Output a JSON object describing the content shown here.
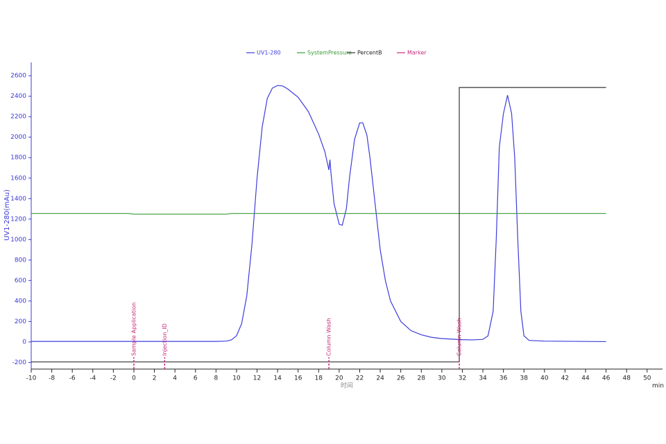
{
  "chart_data": {
    "type": "line",
    "x_label": "时间",
    "x_unit": "min",
    "y_label": "UV1-280(mAu)",
    "xlim": [
      -10,
      51.5
    ],
    "ylim": [
      -265,
      2730
    ],
    "xticks": [
      -10,
      -8,
      -6,
      -4,
      -2,
      0,
      2,
      4,
      6,
      8,
      10,
      12,
      14,
      16,
      18,
      20,
      22,
      24,
      26,
      28,
      30,
      32,
      34,
      36,
      38,
      40,
      42,
      44,
      46,
      48,
      50
    ],
    "yticks": [
      -200,
      0,
      200,
      400,
      600,
      800,
      1000,
      1200,
      1400,
      1600,
      1800,
      2000,
      2200,
      2400,
      2600
    ],
    "series": [
      {
        "name": "UV1-280",
        "color": "#3c3cdc",
        "x": [
          -10,
          0,
          8,
          9,
          9.5,
          10,
          10.5,
          11,
          11.5,
          12,
          12.5,
          13,
          13.5,
          14,
          14.5,
          15,
          16,
          17,
          18,
          18.6,
          19,
          19.1,
          19.2,
          19.5,
          20,
          20.3,
          20.7,
          21,
          21.5,
          22,
          22.3,
          22.7,
          23,
          23.5,
          24,
          24.5,
          25,
          26,
          27,
          28,
          29,
          30,
          31,
          32,
          33,
          34,
          34.5,
          35,
          35.3,
          35.6,
          36,
          36.4,
          36.8,
          37.1,
          37.4,
          37.7,
          38,
          38.5,
          40,
          46
        ],
        "values": [
          5,
          5,
          5,
          8,
          20,
          60,
          180,
          450,
          950,
          1600,
          2100,
          2380,
          2480,
          2505,
          2500,
          2470,
          2390,
          2250,
          2030,
          1860,
          1680,
          1780,
          1650,
          1350,
          1150,
          1140,
          1300,
          1600,
          1980,
          2140,
          2140,
          2020,
          1800,
          1350,
          900,
          600,
          400,
          200,
          110,
          70,
          45,
          33,
          27,
          22,
          20,
          25,
          60,
          300,
          1000,
          1900,
          2230,
          2410,
          2230,
          1800,
          1000,
          300,
          60,
          15,
          8,
          3
        ]
      },
      {
        "name": "SystemPressure",
        "color": "#3a9a3a",
        "x": [
          -10,
          -0.5,
          0,
          9,
          9.5,
          30,
          46
        ],
        "values": [
          1255,
          1255,
          1248,
          1248,
          1255,
          1255,
          1255
        ]
      },
      {
        "name": "PercentB",
        "color": "#333333",
        "x": [
          -10,
          31.7,
          31.7,
          46
        ],
        "values": [
          -195,
          -195,
          2485,
          2485
        ]
      }
    ],
    "markers": {
      "name": "Marker",
      "color": "#c8287a",
      "items": [
        {
          "x": 0,
          "label": "Sample Application"
        },
        {
          "x": 3,
          "label": "Injection_ID"
        },
        {
          "x": 19,
          "label": "Column Wash"
        },
        {
          "x": 31.7,
          "label": "Column Wash"
        }
      ]
    }
  }
}
